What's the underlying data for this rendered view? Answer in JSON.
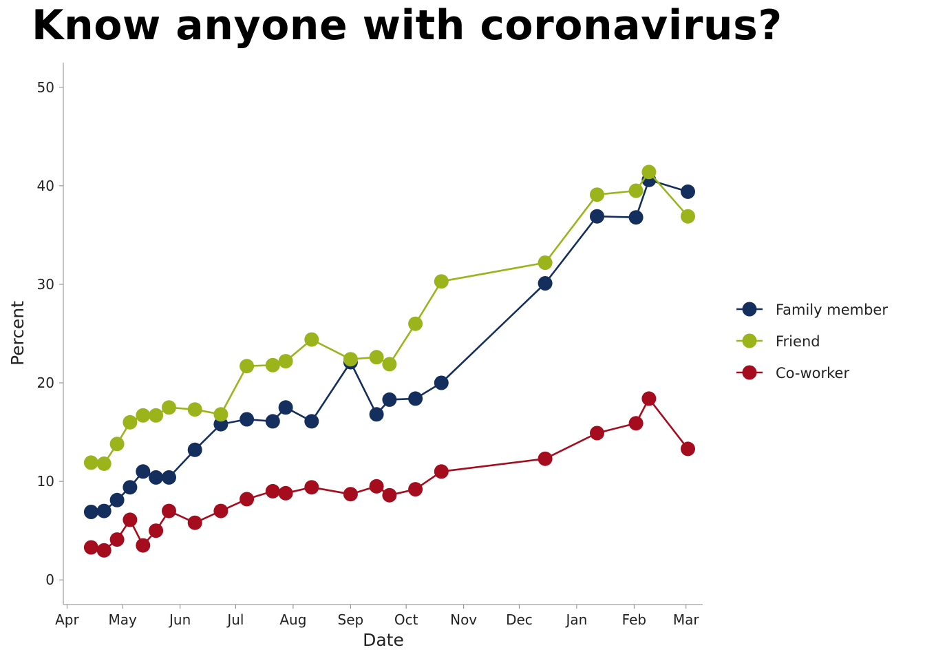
{
  "chart_data": {
    "type": "line",
    "title": "Know anyone with coronavirus?",
    "xlabel": "Date",
    "ylabel": "Percent",
    "ylim": [
      -2.5,
      52.5
    ],
    "yticks": [
      0,
      10,
      20,
      30,
      40,
      50
    ],
    "xlim": [
      "2020-03-30",
      "2021-03-10"
    ],
    "xticks": [
      {
        "date": "2020-04-01",
        "label": "Apr"
      },
      {
        "date": "2020-05-01",
        "label": "May"
      },
      {
        "date": "2020-06-01",
        "label": "Jun"
      },
      {
        "date": "2020-07-01",
        "label": "Jul"
      },
      {
        "date": "2020-08-01",
        "label": "Aug"
      },
      {
        "date": "2020-09-01",
        "label": "Sep"
      },
      {
        "date": "2020-10-01",
        "label": "Oct"
      },
      {
        "date": "2020-11-01",
        "label": "Nov"
      },
      {
        "date": "2020-12-01",
        "label": "Dec"
      },
      {
        "date": "2021-01-01",
        "label": "Jan"
      },
      {
        "date": "2021-02-01",
        "label": "Feb"
      },
      {
        "date": "2021-03-01",
        "label": "Mar"
      }
    ],
    "grid": false,
    "legend_position": "right",
    "x": [
      "2020-04-14",
      "2020-04-21",
      "2020-04-28",
      "2020-05-05",
      "2020-05-12",
      "2020-05-19",
      "2020-05-26",
      "2020-06-09",
      "2020-06-23",
      "2020-07-07",
      "2020-07-21",
      "2020-07-28",
      "2020-08-11",
      "2020-09-01",
      "2020-09-15",
      "2020-09-22",
      "2020-10-06",
      "2020-10-20",
      "2020-12-15",
      "2021-01-12",
      "2021-02-02",
      "2021-02-09",
      "2021-03-02"
    ],
    "series": [
      {
        "name": "Family member",
        "color": "#142f5e",
        "values": [
          6.9,
          7.0,
          8.1,
          9.4,
          11.0,
          10.4,
          10.4,
          13.2,
          15.8,
          16.3,
          16.1,
          17.5,
          16.1,
          22.1,
          16.8,
          18.3,
          18.4,
          20.0,
          30.1,
          36.9,
          36.8,
          40.6,
          39.4
        ]
      },
      {
        "name": "Friend",
        "color": "#9bb41c",
        "values": [
          11.9,
          11.8,
          13.8,
          16.0,
          16.7,
          16.7,
          17.5,
          17.3,
          16.8,
          21.7,
          21.8,
          22.2,
          24.4,
          22.4,
          22.6,
          21.9,
          26.0,
          30.3,
          32.2,
          39.1,
          39.5,
          41.4,
          36.9
        ]
      },
      {
        "name": "Co-worker",
        "color": "#a50d1e",
        "values": [
          3.3,
          3.0,
          4.1,
          6.1,
          3.5,
          5.0,
          7.0,
          5.8,
          7.0,
          8.2,
          9.0,
          8.8,
          9.4,
          8.7,
          9.5,
          8.6,
          9.2,
          11.0,
          12.3,
          14.9,
          15.9,
          18.4,
          13.3
        ]
      }
    ]
  }
}
